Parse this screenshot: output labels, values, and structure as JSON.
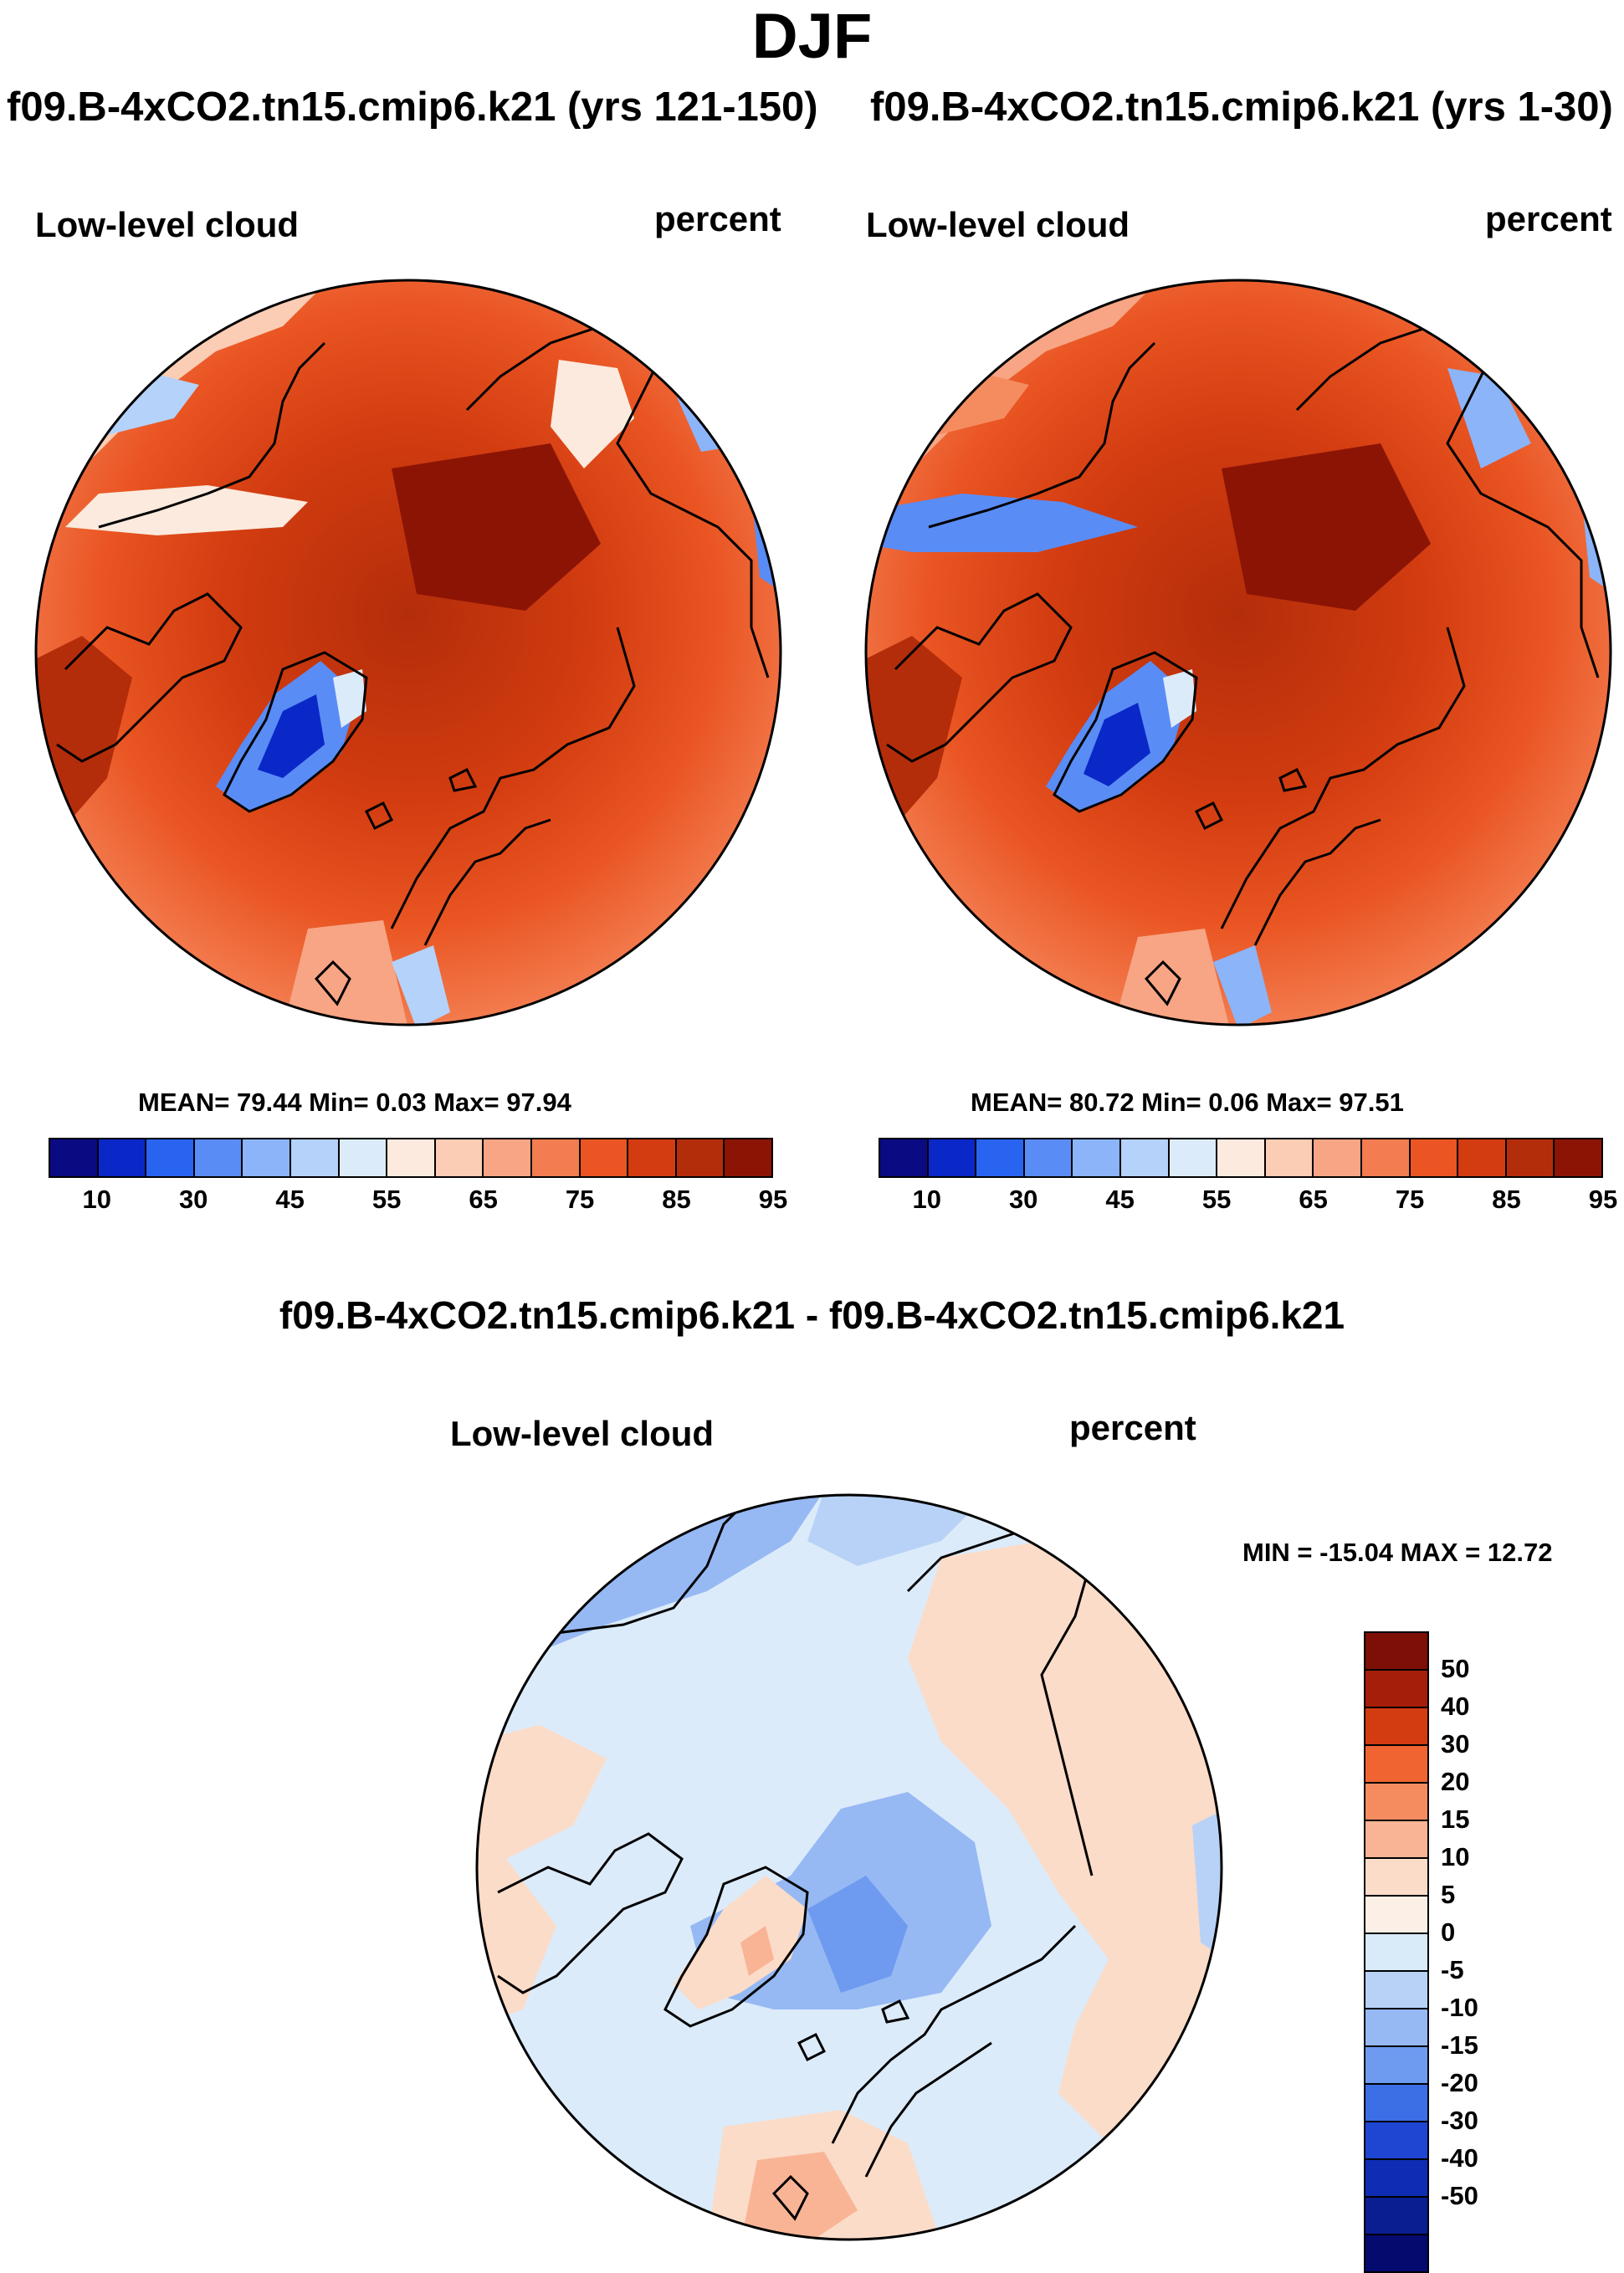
{
  "title": "DJF",
  "panels": [
    {
      "case_title": "f09.B-4xCO2.tn15.cmip6.k21 (yrs 121-150)",
      "variable": "Low-level cloud",
      "units": "percent",
      "stats": "MEAN=  79.44  Min=   0.03  Max=  97.94"
    },
    {
      "case_title": "f09.B-4xCO2.tn15.cmip6.k21 (yrs 1-30)",
      "variable": "Low-level cloud",
      "units": "percent",
      "stats": "MEAN=  80.72  Min=   0.06  Max=  97.51"
    }
  ],
  "diff": {
    "title": "f09.B-4xCO2.tn15.cmip6.k21 - f09.B-4xCO2.tn15.cmip6.k21",
    "variable": "Low-level cloud",
    "units": "percent",
    "minmax": "MIN = -15.04 MAX =  12.72"
  },
  "colors": {
    "abs_scale": [
      "#0a0a82",
      "#0a28c8",
      "#2864f0",
      "#5a8cf5",
      "#8cb4f8",
      "#b4d2fa",
      "#dcebfa",
      "#fbeadd",
      "#fbcdb4",
      "#f7a584",
      "#f37d50",
      "#ea5523",
      "#d23c10",
      "#b42d0a",
      "#8c1405"
    ],
    "diff_scale": [
      "#7d0f06",
      "#a51e0a",
      "#d23c10",
      "#f06432",
      "#f58c5f",
      "#f9b496",
      "#fbdcc8",
      "#fbefe6",
      "#d9eaf9",
      "#b8d2f7",
      "#96b9f4",
      "#6e9bf0",
      "#3c6ee6",
      "#1e46d2",
      "#0f2db4",
      "#0a1e91",
      "#050a6e"
    ]
  },
  "chart_data": [
    {
      "type": "heatmap",
      "projection": "north-polar-stereographic",
      "title": "f09.B-4xCO2.tn15.cmip6.k21 (yrs 121-150)",
      "variable": "Low-level cloud",
      "units": "percent",
      "mean": 79.44,
      "min": 0.03,
      "max": 97.94,
      "colorbar_ticks": [
        10,
        30,
        45,
        55,
        65,
        75,
        85,
        95
      ],
      "colorbar_levels": [
        5,
        10,
        20,
        30,
        40,
        45,
        50,
        55,
        60,
        65,
        70,
        75,
        80,
        85,
        90,
        95
      ]
    },
    {
      "type": "heatmap",
      "projection": "north-polar-stereographic",
      "title": "f09.B-4xCO2.tn15.cmip6.k21 (yrs 1-30)",
      "variable": "Low-level cloud",
      "units": "percent",
      "mean": 80.72,
      "min": 0.06,
      "max": 97.51,
      "colorbar_ticks": [
        10,
        30,
        45,
        55,
        65,
        75,
        85,
        95
      ],
      "colorbar_levels": [
        5,
        10,
        20,
        30,
        40,
        45,
        50,
        55,
        60,
        65,
        70,
        75,
        80,
        85,
        90,
        95
      ]
    },
    {
      "type": "heatmap",
      "projection": "north-polar-stereographic",
      "title": "f09.B-4xCO2.tn15.cmip6.k21 - f09.B-4xCO2.tn15.cmip6.k21",
      "variable": "Low-level cloud",
      "units": "percent",
      "min": -15.04,
      "max": 12.72,
      "colorbar_ticks": [
        50,
        40,
        30,
        20,
        15,
        10,
        5,
        0,
        -5,
        -10,
        -15,
        -20,
        -30,
        -40,
        -50
      ]
    }
  ]
}
